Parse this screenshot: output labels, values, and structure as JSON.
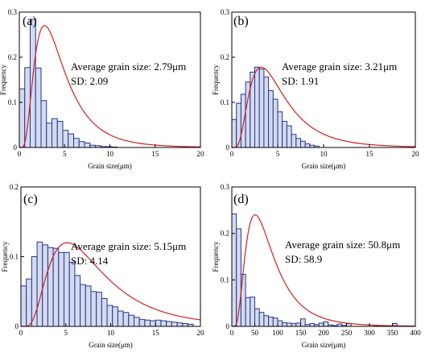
{
  "figure": {
    "colors": {
      "bar_fill": "#d4dbef",
      "bar_edge": "#26368c",
      "curve": "#d22020",
      "axis": "#000000"
    }
  },
  "chart_data": [
    {
      "type": "bar",
      "panel_label": "(a)",
      "xlabel": "Grain size(μm)",
      "ylabel": "Frequency",
      "xlim": [
        0,
        20
      ],
      "ylim": [
        0,
        0.3
      ],
      "xticks": [
        0,
        5,
        10,
        15,
        20
      ],
      "yticks": [
        0.0,
        0.1,
        0.2,
        0.3
      ],
      "bin_width": 0.6,
      "bins_start": [
        0.0,
        0.6,
        1.2,
        1.8,
        2.4,
        3.0,
        3.6,
        4.2,
        4.8,
        5.4,
        6.0,
        6.6,
        7.2,
        7.8,
        8.4,
        9.0,
        9.6,
        10.2
      ],
      "values": [
        0.13,
        0.177,
        0.284,
        0.176,
        0.104,
        0.054,
        0.064,
        0.058,
        0.038,
        0.03,
        0.02,
        0.013,
        0.01,
        0.005,
        0.004,
        0.002,
        0.002,
        0.001
      ],
      "annotation": {
        "avg_label": "Average grain size:",
        "avg_value": "2.79μm",
        "sd_label": "SD:",
        "sd_value": "2.09"
      },
      "fit_curve": {
        "type": "lognormal",
        "mode": 2.79,
        "peak": 0.27
      }
    },
    {
      "type": "bar",
      "panel_label": "(b)",
      "xlabel": "Grain size(μm)",
      "ylabel": "Frequency",
      "xlim": [
        0,
        20
      ],
      "ylim": [
        0,
        0.3
      ],
      "xticks": [
        0,
        5,
        10,
        15,
        20
      ],
      "yticks": [
        0.0,
        0.1,
        0.2,
        0.3
      ],
      "bin_width": 0.5,
      "bins_start": [
        0.0,
        0.5,
        1.0,
        1.5,
        2.0,
        2.5,
        3.0,
        3.5,
        4.0,
        4.5,
        5.0,
        5.5,
        6.0,
        6.5,
        7.0,
        7.5,
        8.0,
        8.5,
        9.0
      ],
      "values": [
        0.062,
        0.098,
        0.118,
        0.145,
        0.167,
        0.178,
        0.174,
        0.156,
        0.126,
        0.107,
        0.079,
        0.058,
        0.048,
        0.029,
        0.02,
        0.014,
        0.008,
        0.005,
        0.003
      ],
      "annotation": {
        "avg_label": "Average grain size:",
        "avg_value": "3.21μm",
        "sd_label": "SD:",
        "sd_value": "1.91"
      },
      "fit_curve": {
        "type": "lognormal",
        "mode": 3.21,
        "peak": 0.178
      }
    },
    {
      "type": "bar",
      "panel_label": "(c)",
      "xlabel": "Grain size(μm)",
      "ylabel": "Frequency",
      "xlim": [
        0,
        20
      ],
      "ylim": [
        0,
        0.2
      ],
      "xticks": [
        0,
        5,
        10,
        15,
        20
      ],
      "yticks": [
        0.0,
        0.1,
        0.2
      ],
      "bin_width": 0.6,
      "bins_start": [
        0.0,
        0.6,
        1.2,
        1.8,
        2.4,
        3.0,
        3.6,
        4.2,
        4.8,
        5.4,
        6.0,
        6.6,
        7.2,
        7.8,
        8.4,
        9.0,
        9.6,
        10.2,
        10.8,
        11.4,
        12.0,
        12.6,
        13.2,
        13.8,
        14.4,
        15.0,
        15.6,
        16.2,
        16.8,
        17.4,
        18.0,
        18.6
      ],
      "values": [
        0.058,
        0.068,
        0.1,
        0.121,
        0.117,
        0.113,
        0.112,
        0.106,
        0.106,
        0.092,
        0.073,
        0.06,
        0.058,
        0.05,
        0.049,
        0.04,
        0.03,
        0.028,
        0.022,
        0.02,
        0.016,
        0.013,
        0.01,
        0.009,
        0.008,
        0.009,
        0.008,
        0.007,
        0.006,
        0.005,
        0.004,
        0.003
      ],
      "annotation": {
        "avg_label": "Average grain size:",
        "avg_value": "5.15μm",
        "sd_label": "SD:",
        "sd_value": "4.14"
      },
      "fit_curve": {
        "type": "lognormal",
        "mode": 5.15,
        "peak": 0.12
      }
    },
    {
      "type": "bar",
      "panel_label": "(d)",
      "xlabel": "Grain size(μm)",
      "ylabel": "Frequency",
      "xlim": [
        0,
        400
      ],
      "ylim": [
        0,
        0.3
      ],
      "xticks": [
        0,
        50,
        100,
        150,
        200,
        250,
        300,
        350,
        400
      ],
      "yticks": [
        0.0,
        0.1,
        0.2,
        0.3
      ],
      "bin_width": 10,
      "bins_start": [
        0,
        10,
        20,
        30,
        40,
        50,
        60,
        70,
        80,
        90,
        100,
        110,
        120,
        130,
        140,
        150,
        160,
        170,
        180,
        190,
        200,
        210,
        220,
        230,
        240,
        250,
        310,
        350
      ],
      "values": [
        0.242,
        0.21,
        0.112,
        0.062,
        0.063,
        0.038,
        0.03,
        0.023,
        0.02,
        0.018,
        0.012,
        0.008,
        0.007,
        0.006,
        0.007,
        0.016,
        0.004,
        0.006,
        0.004,
        0.007,
        0.01,
        0.003,
        0.002,
        0.005,
        0.002,
        0.006,
        0.002,
        0.006
      ],
      "annotation": {
        "avg_label": "Average grain size:",
        "avg_value": "50.8μm",
        "sd_label": "SD:",
        "sd_value": "58.9"
      },
      "fit_curve": {
        "type": "lognormal",
        "mode": 50.8,
        "peak": 0.24
      }
    }
  ]
}
